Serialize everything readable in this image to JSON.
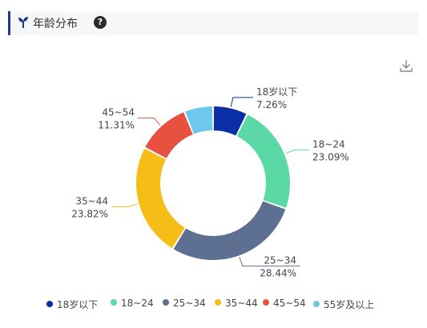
{
  "header": {
    "title": "年龄分布",
    "help": "?"
  },
  "icons": {
    "title_icon": "sprout-icon",
    "help": "help-circle-icon",
    "download": "download-icon"
  },
  "chart_data": {
    "type": "pie",
    "style": "donut",
    "title": "",
    "legend_position": "bottom",
    "categories": [
      "18岁以下",
      "18~24",
      "25~34",
      "35~44",
      "45~54",
      "55岁及以上"
    ],
    "values": [
      7.26,
      23.09,
      28.44,
      23.82,
      11.31,
      6.08
    ],
    "value_labels": [
      "7.26%",
      "23.09%",
      "28.44%",
      "23.82%",
      "11.31%",
      ""
    ],
    "unit": "%",
    "colors": [
      "#0a2ea6",
      "#5ad8a6",
      "#5d7092",
      "#f6bd16",
      "#e8513f",
      "#6dc8ec"
    ]
  }
}
